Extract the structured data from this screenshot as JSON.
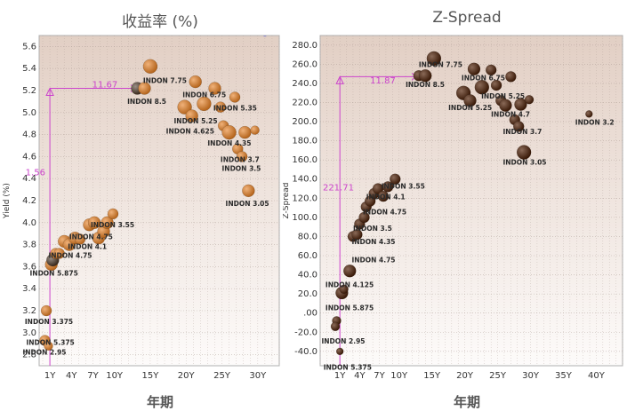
{
  "chart_data": [
    {
      "type": "scatter",
      "title": "收益率 (%)",
      "xlabel": "年期",
      "ylabel": "Yield (%)",
      "xticks": [
        1,
        4,
        7,
        10,
        15,
        20,
        25,
        30
      ],
      "xtick_labels": [
        "1Y",
        "4Y",
        "7Y",
        "10Y",
        "15Y",
        "20Y",
        "25Y",
        "30Y"
      ],
      "xlim": [
        -0.5,
        33
      ],
      "ylim": [
        2.7,
        5.7
      ],
      "yticks": [
        2.8,
        3.0,
        3.2,
        3.4,
        3.6,
        3.8,
        4.0,
        4.2,
        4.4,
        4.6,
        4.8,
        5.0,
        5.2,
        5.4,
        5.6
      ],
      "ytick_labels": [
        "2.8",
        "3.0",
        "3.2",
        "3.4",
        "3.6",
        "3.8",
        "4.0",
        "4.2",
        "4.4",
        "4.6",
        "4.8",
        "5.0",
        "5.2",
        "5.4",
        "5.6"
      ],
      "grid": true,
      "colors": {
        "bubble": "#b5651d",
        "bubble_dark": "#7a3a0a",
        "annotation": "#cc44cc"
      },
      "points": [
        {
          "x": 0.5,
          "y": 3.2,
          "size": 6
        },
        {
          "x": 0.3,
          "y": 2.93,
          "size": 6
        },
        {
          "x": 0.8,
          "y": 2.88,
          "size": 5
        },
        {
          "x": 1.2,
          "y": 3.62,
          "size": 7
        },
        {
          "x": 1.4,
          "y": 3.66,
          "size": 7,
          "dark": true
        },
        {
          "x": 1.8,
          "y": 3.72,
          "size": 6
        },
        {
          "x": 2.3,
          "y": 3.72,
          "size": 6
        },
        {
          "x": 3.0,
          "y": 3.83,
          "size": 7
        },
        {
          "x": 3.7,
          "y": 3.8,
          "size": 7
        },
        {
          "x": 4.5,
          "y": 3.86,
          "size": 7
        },
        {
          "x": 5.2,
          "y": 3.85,
          "size": 6
        },
        {
          "x": 6.5,
          "y": 3.98,
          "size": 7
        },
        {
          "x": 7.2,
          "y": 4.0,
          "size": 7
        },
        {
          "x": 7.8,
          "y": 3.86,
          "size": 7
        },
        {
          "x": 8.5,
          "y": 3.92,
          "size": 7
        },
        {
          "x": 9.0,
          "y": 4.0,
          "size": 7
        },
        {
          "x": 9.8,
          "y": 4.08,
          "size": 6
        },
        {
          "x": 13.2,
          "y": 5.22,
          "size": 7,
          "dark": true
        },
        {
          "x": 14.2,
          "y": 5.22,
          "size": 7
        },
        {
          "x": 15.0,
          "y": 5.42,
          "size": 8
        },
        {
          "x": 19.8,
          "y": 5.05,
          "size": 8
        },
        {
          "x": 20.8,
          "y": 4.97,
          "size": 7
        },
        {
          "x": 21.3,
          "y": 5.28,
          "size": 7
        },
        {
          "x": 22.5,
          "y": 5.08,
          "size": 8
        },
        {
          "x": 24.0,
          "y": 5.22,
          "size": 7
        },
        {
          "x": 24.8,
          "y": 5.05,
          "size": 6
        },
        {
          "x": 25.2,
          "y": 4.88,
          "size": 6
        },
        {
          "x": 26.0,
          "y": 4.82,
          "size": 8
        },
        {
          "x": 26.8,
          "y": 5.14,
          "size": 6
        },
        {
          "x": 27.2,
          "y": 4.67,
          "size": 6
        },
        {
          "x": 27.8,
          "y": 4.6,
          "size": 6
        },
        {
          "x": 28.2,
          "y": 4.82,
          "size": 7
        },
        {
          "x": 28.7,
          "y": 4.29,
          "size": 7
        },
        {
          "x": 29.6,
          "y": 4.84,
          "size": 5
        }
      ],
      "labels": [
        {
          "text": "INDON 7.75",
          "x": 14.0,
          "y": 5.27
        },
        {
          "text": "INDON 8.5",
          "x": 11.8,
          "y": 5.08
        },
        {
          "text": "INDON 6.75",
          "x": 19.5,
          "y": 5.14
        },
        {
          "text": "INDON 5.35",
          "x": 23.8,
          "y": 5.02
        },
        {
          "text": "INDON 5.25",
          "x": 18.3,
          "y": 4.9
        },
        {
          "text": "INDON 4.625",
          "x": 17.2,
          "y": 4.81
        },
        {
          "text": "INDON 4.35",
          "x": 23.0,
          "y": 4.7
        },
        {
          "text": "INDON 3.7",
          "x": 24.8,
          "y": 4.55
        },
        {
          "text": "INDON 3.5",
          "x": 25.0,
          "y": 4.47
        },
        {
          "text": "INDON 3.05",
          "x": 25.5,
          "y": 4.15
        },
        {
          "text": "INDON 3.55",
          "x": 6.7,
          "y": 3.96
        },
        {
          "text": "INDON 4.75",
          "x": 3.7,
          "y": 3.85
        },
        {
          "text": "INDON 4.1",
          "x": 3.5,
          "y": 3.76
        },
        {
          "text": "INDON 4.75",
          "x": 0.8,
          "y": 3.68
        },
        {
          "text": "INDON 5.875",
          "x": -1.8,
          "y": 3.52
        },
        {
          "text": "INDON 3.375",
          "x": -2.5,
          "y": 3.08
        },
        {
          "text": "INDON 5.375",
          "x": -2.3,
          "y": 2.89
        },
        {
          "text": "INDON 2.95",
          "x": -2.8,
          "y": 2.8
        }
      ],
      "annotations": [
        {
          "text": "11.67",
          "x": 6.9,
          "y": 5.23
        },
        {
          "text": "1.56",
          "x": -2.4,
          "y": 4.43
        }
      ]
    },
    {
      "type": "scatter",
      "title": "Z-Spread",
      "xlabel": "年期",
      "ylabel": "Z-Spread",
      "xticks": [
        1,
        4,
        7,
        10,
        15,
        20,
        25,
        30,
        35,
        40
      ],
      "xtick_labels": [
        "1Y",
        "4Y",
        "7Y",
        "10Y",
        "15Y",
        "20Y",
        "25Y",
        "30Y",
        "35Y",
        "40Y"
      ],
      "xlim": [
        -2,
        44
      ],
      "ylim": [
        -55,
        290
      ],
      "yticks": [
        -40,
        -20,
        0,
        20,
        40,
        60,
        80,
        100,
        120,
        140,
        160,
        180,
        200,
        220,
        240,
        260,
        280
      ],
      "ytick_labels": [
        "-40.0",
        "-20.0",
        ".00",
        "20.0",
        "40.0",
        "60.0",
        "80.0",
        "100.0",
        "120.0",
        "140.0",
        "160.0",
        "180.0",
        "200.0",
        "220.0",
        "240.0",
        "260.0",
        "280.0"
      ],
      "grid": true,
      "colors": {
        "bubble": "#3a1a08",
        "annotation": "#cc44cc"
      },
      "points": [
        {
          "x": 0.5,
          "y": -8,
          "size": 5
        },
        {
          "x": 0.3,
          "y": -14,
          "size": 5
        },
        {
          "x": 1.0,
          "y": -40,
          "size": 4
        },
        {
          "x": 1.3,
          "y": 21,
          "size": 7
        },
        {
          "x": 1.6,
          "y": 25,
          "size": 5
        },
        {
          "x": 2.5,
          "y": 44,
          "size": 7
        },
        {
          "x": 3.0,
          "y": 80,
          "size": 6
        },
        {
          "x": 3.6,
          "y": 82,
          "size": 6
        },
        {
          "x": 4.0,
          "y": 93,
          "size": 6
        },
        {
          "x": 4.7,
          "y": 100,
          "size": 6
        },
        {
          "x": 5.0,
          "y": 111,
          "size": 6
        },
        {
          "x": 5.6,
          "y": 117,
          "size": 6
        },
        {
          "x": 6.2,
          "y": 125,
          "size": 6
        },
        {
          "x": 6.8,
          "y": 130,
          "size": 6
        },
        {
          "x": 7.6,
          "y": 122,
          "size": 6
        },
        {
          "x": 8.3,
          "y": 132,
          "size": 6
        },
        {
          "x": 9.4,
          "y": 140,
          "size": 6
        },
        {
          "x": 13.0,
          "y": 248,
          "size": 6
        },
        {
          "x": 14.0,
          "y": 248,
          "size": 7
        },
        {
          "x": 15.3,
          "y": 266,
          "size": 8
        },
        {
          "x": 19.8,
          "y": 230,
          "size": 8
        },
        {
          "x": 20.8,
          "y": 222,
          "size": 7
        },
        {
          "x": 21.4,
          "y": 255,
          "size": 7
        },
        {
          "x": 22.6,
          "y": 236,
          "size": 8
        },
        {
          "x": 24.0,
          "y": 254,
          "size": 6
        },
        {
          "x": 24.8,
          "y": 238,
          "size": 6
        },
        {
          "x": 25.5,
          "y": 222,
          "size": 6
        },
        {
          "x": 26.2,
          "y": 217,
          "size": 7
        },
        {
          "x": 27.0,
          "y": 247,
          "size": 6
        },
        {
          "x": 27.6,
          "y": 202,
          "size": 6
        },
        {
          "x": 28.2,
          "y": 195,
          "size": 6
        },
        {
          "x": 28.5,
          "y": 218,
          "size": 7
        },
        {
          "x": 29.0,
          "y": 168,
          "size": 8
        },
        {
          "x": 29.8,
          "y": 223,
          "size": 5
        },
        {
          "x": 38.9,
          "y": 208,
          "size": 4
        }
      ],
      "labels": [
        {
          "text": "INDON 7.75",
          "x": 13.0,
          "y": 257
        },
        {
          "text": "INDON 8.5",
          "x": 11.0,
          "y": 236
        },
        {
          "text": "INDON 6.75",
          "x": 19.5,
          "y": 243
        },
        {
          "text": "INDON 5.25",
          "x": 22.5,
          "y": 224
        },
        {
          "text": "INDON 5.25",
          "x": 17.5,
          "y": 212
        },
        {
          "text": "INDON 4.7",
          "x": 24.0,
          "y": 205
        },
        {
          "text": "INDON 3.7",
          "x": 25.8,
          "y": 187
        },
        {
          "text": "INDON 3.2",
          "x": 36.8,
          "y": 197
        },
        {
          "text": "INDON 3.05",
          "x": 25.8,
          "y": 155
        },
        {
          "text": "INDON 3.55",
          "x": 7.3,
          "y": 130
        },
        {
          "text": "INDON 4.1",
          "x": 5.0,
          "y": 119
        },
        {
          "text": "INDON 4.75",
          "x": 4.5,
          "y": 103
        },
        {
          "text": "INDON 3.5",
          "x": 3.0,
          "y": 86
        },
        {
          "text": "INDON 4.35",
          "x": 2.8,
          "y": 72
        },
        {
          "text": "INDON 4.75",
          "x": 2.8,
          "y": 53
        },
        {
          "text": "INDON 4.125",
          "x": -1.2,
          "y": 27
        },
        {
          "text": "INDON 5.875",
          "x": -1.2,
          "y": 3
        },
        {
          "text": "INDON 2.95",
          "x": -1.8,
          "y": -32
        },
        {
          "text": "INDON 5.375",
          "x": -1.5,
          "y": -59
        }
      ],
      "annotations": [
        {
          "text": "11.87",
          "x": 5.6,
          "y": 240
        },
        {
          "text": "221.71",
          "x": -1.6,
          "y": 128
        }
      ]
    }
  ]
}
